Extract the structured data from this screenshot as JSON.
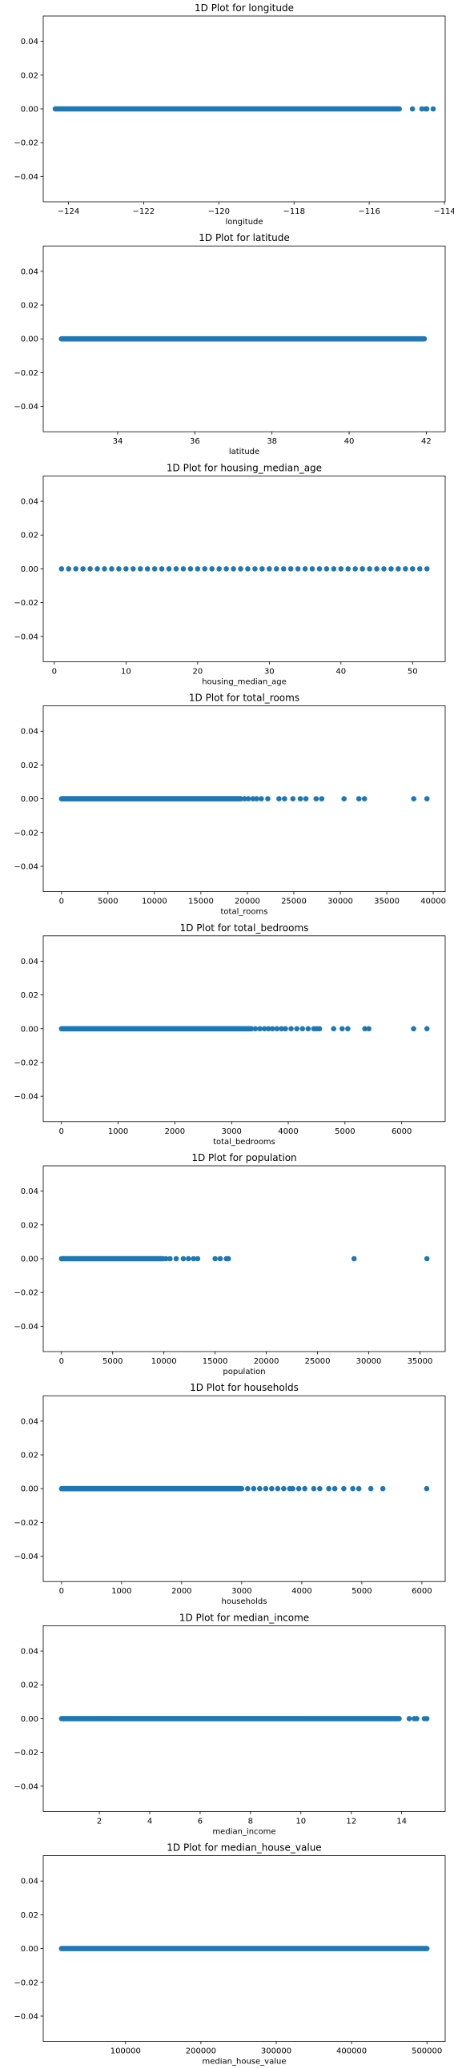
{
  "figure": {
    "marker_color": "#1f77b4",
    "axis_color": "#000000",
    "background": "#ffffff"
  },
  "chart_data": [
    {
      "type": "scatter",
      "title": "1D Plot for longitude",
      "xlabel": "longitude",
      "xlim": [
        -124.67,
        -113.98
      ],
      "ylim": [
        -0.055,
        0.055
      ],
      "xticks": [
        -124,
        -122,
        -120,
        -118,
        -116,
        -114
      ],
      "xtick_labels": [
        "−124",
        "−122",
        "−120",
        "−118",
        "−116",
        "−114"
      ],
      "yticks": [
        0.04,
        0.02,
        0.0,
        -0.02,
        -0.04
      ],
      "ytick_labels": [
        "0.04",
        "0.02",
        "0.00",
        "−0.02",
        "−0.04"
      ],
      "grid": false,
      "legend": "none",
      "dense_ranges": [
        [
          -124.35,
          -115.2
        ]
      ],
      "points": [
        -114.85,
        -114.6,
        -114.5,
        -114.47,
        -114.3
      ],
      "y": 0
    },
    {
      "type": "scatter",
      "title": "1D Plot for latitude",
      "xlabel": "latitude",
      "xlim": [
        32.07,
        42.49
      ],
      "ylim": [
        -0.055,
        0.055
      ],
      "xticks": [
        34,
        36,
        38,
        40,
        42
      ],
      "xtick_labels": [
        "34",
        "36",
        "38",
        "40",
        "42"
      ],
      "yticks": [
        0.04,
        0.02,
        0.0,
        -0.02,
        -0.04
      ],
      "ytick_labels": [
        "0.04",
        "0.02",
        "0.00",
        "−0.02",
        "−0.04"
      ],
      "grid": false,
      "legend": "none",
      "dense_ranges": [
        [
          32.54,
          41.95
        ]
      ],
      "points": [],
      "y": 0
    },
    {
      "type": "scatter",
      "title": "1D Plot for housing_median_age",
      "xlabel": "housing_median_age",
      "xlim": [
        -1.55,
        54.55
      ],
      "ylim": [
        -0.055,
        0.055
      ],
      "xticks": [
        0,
        10,
        20,
        30,
        40,
        50
      ],
      "xtick_labels": [
        "0",
        "10",
        "20",
        "30",
        "40",
        "50"
      ],
      "yticks": [
        0.04,
        0.02,
        0.0,
        -0.02,
        -0.04
      ],
      "ytick_labels": [
        "0.04",
        "0.02",
        "0.00",
        "−0.02",
        "−0.04"
      ],
      "grid": false,
      "legend": "none",
      "dense_ranges": [],
      "points": [
        1,
        2,
        3,
        4,
        5,
        6,
        7,
        8,
        9,
        10,
        11,
        12,
        13,
        14,
        15,
        16,
        17,
        18,
        19,
        20,
        21,
        22,
        23,
        24,
        25,
        26,
        27,
        28,
        29,
        30,
        31,
        32,
        33,
        34,
        35,
        36,
        37,
        38,
        39,
        40,
        41,
        42,
        43,
        44,
        45,
        46,
        47,
        48,
        49,
        50,
        51,
        52
      ],
      "y": 0
    },
    {
      "type": "scatter",
      "title": "1D Plot for total_rooms",
      "xlabel": "total_rooms",
      "xlim": [
        -1967,
        41286
      ],
      "ylim": [
        -0.055,
        0.055
      ],
      "xticks": [
        0,
        5000,
        10000,
        15000,
        20000,
        25000,
        30000,
        35000,
        40000
      ],
      "xtick_labels": [
        "0",
        "5000",
        "10000",
        "15000",
        "20000",
        "25000",
        "30000",
        "35000",
        "40000"
      ],
      "yticks": [
        0.04,
        0.02,
        0.0,
        -0.02,
        -0.04
      ],
      "ytick_labels": [
        "0.04",
        "0.02",
        "0.00",
        "−0.02",
        "−0.04"
      ],
      "grid": false,
      "legend": "none",
      "dense_ranges": [
        [
          2,
          19300
        ]
      ],
      "points": [
        19700,
        20100,
        20600,
        21000,
        21500,
        22200,
        23400,
        24000,
        24900,
        25700,
        26300,
        27400,
        28000,
        30400,
        32000,
        32600,
        37900,
        39320
      ],
      "y": 0
    },
    {
      "type": "scatter",
      "title": "1D Plot for total_bedrooms",
      "xlabel": "total_bedrooms",
      "xlim": [
        -321,
        6767
      ],
      "ylim": [
        -0.055,
        0.055
      ],
      "xticks": [
        0,
        1000,
        2000,
        3000,
        4000,
        5000,
        6000
      ],
      "xtick_labels": [
        "0",
        "1000",
        "2000",
        "3000",
        "4000",
        "5000",
        "6000"
      ],
      "yticks": [
        0.04,
        0.02,
        0.0,
        -0.02,
        -0.04
      ],
      "ytick_labels": [
        "0.04",
        "0.02",
        "0.00",
        "−0.02",
        "−0.04"
      ],
      "grid": false,
      "legend": "none",
      "dense_ranges": [
        [
          1,
          3350
        ]
      ],
      "points": [
        3420,
        3500,
        3580,
        3650,
        3720,
        3800,
        3880,
        3950,
        4050,
        4150,
        4250,
        4350,
        4450,
        4500,
        4550,
        4800,
        4950,
        5050,
        5350,
        5420,
        6210,
        6445
      ],
      "y": 0
    },
    {
      "type": "scatter",
      "title": "1D Plot for population",
      "xlabel": "population",
      "xlim": [
        -1780,
        37465
      ],
      "ylim": [
        -0.055,
        0.055
      ],
      "xticks": [
        0,
        5000,
        10000,
        15000,
        20000,
        25000,
        30000,
        35000
      ],
      "xtick_labels": [
        "0",
        "5000",
        "10000",
        "15000",
        "20000",
        "25000",
        "30000",
        "35000"
      ],
      "yticks": [
        0.04,
        0.02,
        0.0,
        -0.02,
        -0.04
      ],
      "ytick_labels": [
        "0.04",
        "0.02",
        "0.00",
        "−0.02",
        "−0.04"
      ],
      "grid": false,
      "legend": "none",
      "dense_ranges": [
        [
          3,
          9900
        ]
      ],
      "points": [
        10200,
        10600,
        11200,
        11900,
        12400,
        12900,
        13300,
        15000,
        15500,
        16100,
        16300,
        28570,
        35680
      ],
      "y": 0
    },
    {
      "type": "scatter",
      "title": "1D Plot for households",
      "xlabel": "households",
      "xlim": [
        -304,
        6388
      ],
      "ylim": [
        -0.055,
        0.055
      ],
      "xticks": [
        0,
        1000,
        2000,
        3000,
        4000,
        5000,
        6000
      ],
      "xtick_labels": [
        "0",
        "1000",
        "2000",
        "3000",
        "4000",
        "5000",
        "6000"
      ],
      "yticks": [
        0.04,
        0.02,
        0.0,
        -0.02,
        -0.04
      ],
      "ytick_labels": [
        "0.04",
        "0.02",
        "0.00",
        "−0.02",
        "−0.04"
      ],
      "grid": false,
      "legend": "none",
      "dense_ranges": [
        [
          1,
          3000
        ]
      ],
      "points": [
        3100,
        3200,
        3300,
        3400,
        3500,
        3600,
        3700,
        3800,
        3850,
        3950,
        4050,
        4200,
        4300,
        4450,
        4550,
        4700,
        4850,
        4950,
        5150,
        5350,
        6080
      ],
      "y": 0
    },
    {
      "type": "scatter",
      "title": "1D Plot for median_income",
      "xlabel": "median_income",
      "xlim": [
        -0.227,
        15.727
      ],
      "ylim": [
        -0.055,
        0.055
      ],
      "xticks": [
        2,
        4,
        6,
        8,
        10,
        12,
        14
      ],
      "xtick_labels": [
        "2",
        "4",
        "6",
        "8",
        "10",
        "12",
        "14"
      ],
      "yticks": [
        0.04,
        0.02,
        0.0,
        -0.02,
        -0.04
      ],
      "ytick_labels": [
        "0.04",
        "0.02",
        "0.00",
        "−0.02",
        "−0.04"
      ],
      "grid": false,
      "legend": "none",
      "dense_ranges": [
        [
          0.5,
          13.9
        ]
      ],
      "points": [
        14.3,
        14.5,
        14.6,
        14.9,
        15.0
      ],
      "y": 0
    },
    {
      "type": "scatter",
      "title": "1D Plot for median_house_value",
      "xlabel": "median_house_value",
      "xlim": [
        -9250,
        524250
      ],
      "ylim": [
        -0.055,
        0.055
      ],
      "xticks": [
        100000,
        200000,
        300000,
        400000,
        500000
      ],
      "xtick_labels": [
        "100000",
        "200000",
        "300000",
        "400000",
        "500000"
      ],
      "yticks": [
        0.04,
        0.02,
        0.0,
        -0.02,
        -0.04
      ],
      "ytick_labels": [
        "0.04",
        "0.02",
        "0.00",
        "−0.02",
        "−0.04"
      ],
      "grid": false,
      "legend": "none",
      "dense_ranges": [
        [
          15000,
          500001
        ]
      ],
      "points": [],
      "y": 0
    }
  ]
}
